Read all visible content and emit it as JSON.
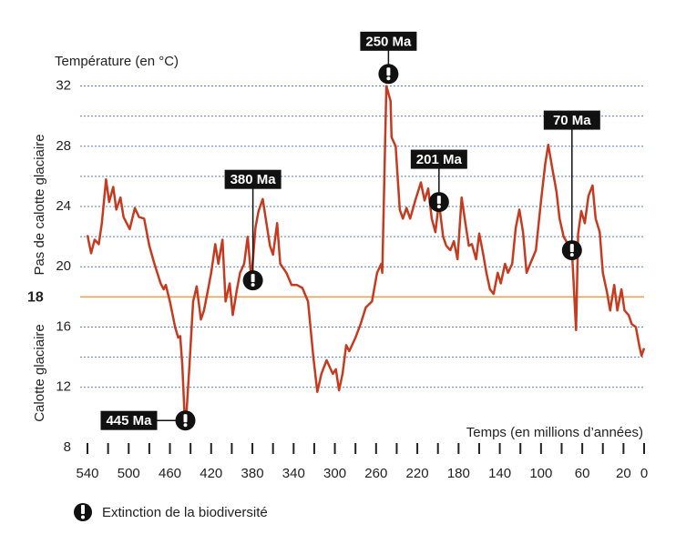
{
  "chart_data": {
    "type": "line",
    "y_label": "Température (en °C)",
    "x_label": "Temps (en millions d’années)",
    "zone_above_label": "Pas de calotte glaciaire",
    "zone_below_label": "Calotte glaciaire",
    "threshold": 18,
    "threshold_color": "#e8a04e",
    "xlim": [
      540,
      0
    ],
    "ylim": [
      8,
      33
    ],
    "xticks": [
      540,
      500,
      460,
      420,
      380,
      340,
      300,
      260,
      220,
      180,
      140,
      100,
      60,
      20,
      0
    ],
    "minor_xticks": [
      520,
      480,
      440,
      400,
      360,
      320,
      280,
      240,
      200,
      160,
      120,
      80,
      40
    ],
    "yticks": [
      8,
      12,
      16,
      20,
      24,
      28,
      32
    ],
    "grid_yticks": [
      12,
      14,
      16,
      20,
      22,
      24,
      26,
      28,
      30,
      32
    ],
    "grid": true,
    "grid_color": "#5a7fc0",
    "series": [
      {
        "name": "Température",
        "color": "#c63b1f",
        "x": [
          540,
          536.5,
          533,
          529,
          526,
          522,
          519,
          515,
          512,
          508,
          505,
          499,
          494,
          490,
          485,
          480,
          475,
          469,
          466,
          464,
          460,
          455,
          452,
          450,
          448,
          446,
          444,
          441,
          437.5,
          434,
          430,
          427,
          423,
          420,
          416,
          413,
          409,
          406,
          402,
          399,
          395,
          392,
          388,
          384.5,
          381,
          377,
          374,
          370,
          367,
          363,
          360,
          356,
          353,
          347,
          342,
          337,
          331.5,
          326,
          321,
          317,
          313,
          308,
          302,
          299,
          296,
          292.5,
          289,
          286,
          280,
          275,
          270,
          264,
          259,
          255,
          254,
          250,
          246,
          245,
          241,
          237,
          234,
          230.5,
          227,
          222,
          216.5,
          213,
          209.5,
          206,
          202.5,
          199,
          195,
          192,
          188,
          184.5,
          181,
          177,
          174,
          170,
          167,
          163,
          160,
          156,
          153,
          149.5,
          146,
          142,
          139,
          135,
          132,
          128,
          124.5,
          121,
          117.5,
          114,
          110.5,
          105,
          100,
          96,
          93,
          89,
          85,
          82,
          78,
          73,
          70,
          66,
          64,
          61,
          57.5,
          54,
          50,
          47,
          43,
          40,
          36,
          33,
          29,
          26,
          22,
          19,
          15,
          12,
          8,
          4.5,
          2.5,
          0
        ],
        "values": [
          22.1,
          20.9,
          21.8,
          21.5,
          22.9,
          25.8,
          24.3,
          25.3,
          23.8,
          24.6,
          23.3,
          22.5,
          23.9,
          23.3,
          23.2,
          21.4,
          20.2,
          18.9,
          18.5,
          18.8,
          17.7,
          16.0,
          15.3,
          15.4,
          13.5,
          10.4,
          10.2,
          13.5,
          17.7,
          18.7,
          16.5,
          17.1,
          18.5,
          19.6,
          21.5,
          20.2,
          21.8,
          17.7,
          18.9,
          16.8,
          18.5,
          19.6,
          20.2,
          22.0,
          19.1,
          22.6,
          23.7,
          24.5,
          23.2,
          21.4,
          20.8,
          22.9,
          20.2,
          19.6,
          18.8,
          18.8,
          18.6,
          17.7,
          14.1,
          11.7,
          12.9,
          13.8,
          12.9,
          13.2,
          11.8,
          12.9,
          14.8,
          14.4,
          15.3,
          16.2,
          17.3,
          17.7,
          19.6,
          20.2,
          19.6,
          32.0,
          31.0,
          28.6,
          28.0,
          23.8,
          23.2,
          23.9,
          23.2,
          24.4,
          25.6,
          24.4,
          25.2,
          23.2,
          22.3,
          24.3,
          22.0,
          21.4,
          21.1,
          21.7,
          20.5,
          24.6,
          23.2,
          21.4,
          21.5,
          20.5,
          22.2,
          20.8,
          19.6,
          18.5,
          18.2,
          19.6,
          18.9,
          20.2,
          19.6,
          20.2,
          22.6,
          23.8,
          22.3,
          19.6,
          20.2,
          21.1,
          24.4,
          26.8,
          28.1,
          26.5,
          25.0,
          23.2,
          22.0,
          21.4,
          21.1,
          15.8,
          22.2,
          23.7,
          22.9,
          24.7,
          25.4,
          23.2,
          22.3,
          19.6,
          18.3,
          17.1,
          18.8,
          17.1,
          18.5,
          17.1,
          16.8,
          16.2,
          16.0,
          14.7,
          14.1,
          14.6
        ]
      }
    ],
    "events": [
      {
        "label": "445 Ma",
        "x": 445,
        "y": 9.8
      },
      {
        "label": "380 Ma",
        "x": 379.5,
        "y": 19.1
      },
      {
        "label": "250 Ma",
        "x": 248,
        "y": 32.8
      },
      {
        "label": "201 Ma",
        "x": 199,
        "y": 24.3
      },
      {
        "label": "70 Ma",
        "x": 70,
        "y": 21.1
      }
    ],
    "legend_label": "Extinction de la biodiversité"
  }
}
